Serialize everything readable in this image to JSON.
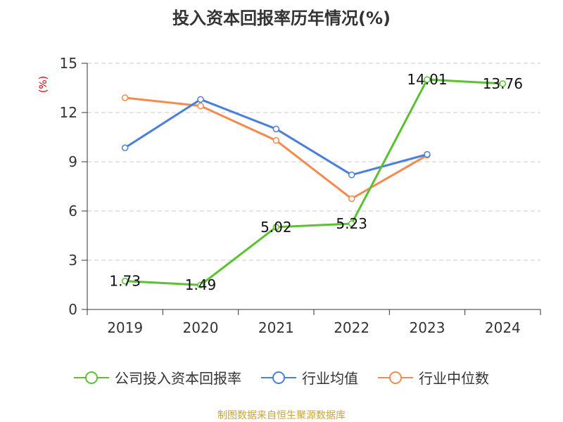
{
  "title": "投入资本回报率历年情况(%)",
  "source": "制图数据来自恒生聚源数据库",
  "colors": {
    "company": "#5ac131",
    "industry_avg": "#4a7fdc",
    "industry_median": "#f58a4f",
    "source": "#c8a43c",
    "ylabel": "#cc0000"
  },
  "chart_data": {
    "type": "line",
    "title": "投入资本回报率历年情况(%)",
    "ylabel": "(%)",
    "xlabel": "",
    "ylim": [
      0,
      15
    ],
    "yticks": [
      0,
      3,
      6,
      9,
      12,
      15
    ],
    "categories": [
      "2019",
      "2020",
      "2021",
      "2022",
      "2023",
      "2024"
    ],
    "grid": true,
    "legend_position": "bottom",
    "series": [
      {
        "name": "公司投入资本回报率",
        "color": "#5ac131",
        "values": [
          1.73,
          1.49,
          5.02,
          5.23,
          14.01,
          13.76
        ],
        "labels": [
          "1.73",
          "1.49",
          "5.02",
          "5.23",
          "14.01",
          "13.76"
        ]
      },
      {
        "name": "行业均值",
        "color": "#4a7fdc",
        "values": [
          9.85,
          12.8,
          11.0,
          8.2,
          9.45,
          null
        ]
      },
      {
        "name": "行业中位数",
        "color": "#f58a4f",
        "values": [
          12.9,
          12.4,
          10.3,
          6.75,
          9.4,
          null
        ]
      }
    ]
  }
}
